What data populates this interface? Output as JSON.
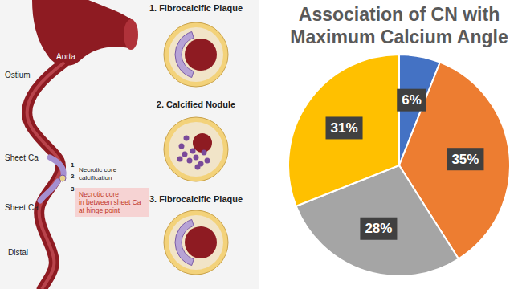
{
  "chart_data": {
    "type": "pie",
    "title": "Association of CN with Maximum Calcium Angle",
    "values": [
      6,
      35,
      28,
      31
    ],
    "value_labels": [
      "6%",
      "35%",
      "28%",
      "31%"
    ],
    "colors": [
      "#4472c4",
      "#ed7d31",
      "#a5a5a5",
      "#ffc000"
    ],
    "data_labels": true
  },
  "illustration": {
    "aorta": "Aorta",
    "ostium": "Ostium",
    "sheet_ca_upper": "Sheet Ca",
    "sheet_ca_lower": "Sheet Ca",
    "necrotic_core_calcification": [
      "Necrotic core",
      "calcification"
    ],
    "markers": [
      "1",
      "2",
      "3"
    ],
    "hinge_note": [
      "Necrotic core",
      "in between sheet Ca",
      "at hinge point"
    ],
    "distal": "Distal",
    "cross_sections": [
      "1. Fibrocalcific Plaque",
      "2. Calcified Nodule",
      "3. Fibrocalcific Plaque"
    ]
  }
}
